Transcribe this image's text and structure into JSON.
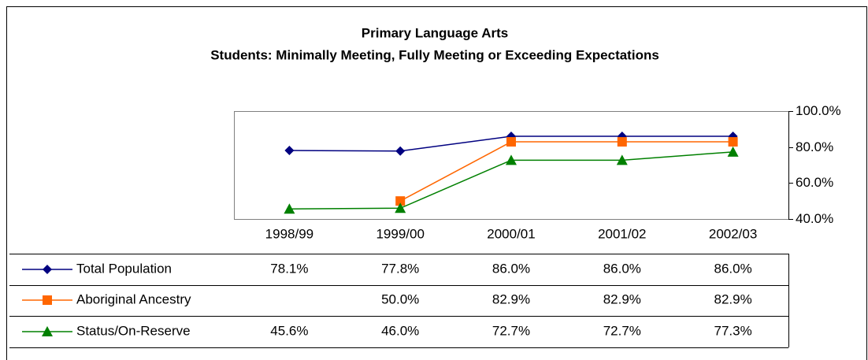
{
  "chart_data": {
    "type": "line",
    "title": "Primary Language Arts",
    "subtitle": "Students: Minimally Meeting, Fully Meeting or Exceeding Expectations",
    "categories": [
      "1998/99",
      "1999/00",
      "2000/01",
      "2001/02",
      "2002/03"
    ],
    "series": [
      {
        "name": "Total Population",
        "color": "#000080",
        "marker": "diamond",
        "values": [
          78.1,
          77.8,
          86.0,
          86.0,
          86.0
        ],
        "value_labels": [
          "78.1%",
          "77.8%",
          "86.0%",
          "86.0%",
          "86.0%"
        ]
      },
      {
        "name": "Aboriginal Ancestry",
        "color": "#ff6600",
        "marker": "square",
        "values": [
          null,
          50.0,
          82.9,
          82.9,
          82.9
        ],
        "value_labels": [
          null,
          "50.0%",
          "82.9%",
          "82.9%",
          "82.9%"
        ]
      },
      {
        "name": "Status/On-Reserve",
        "color": "#008000",
        "marker": "triangle",
        "values": [
          45.6,
          46.0,
          72.7,
          72.7,
          77.3
        ],
        "value_labels": [
          "45.6%",
          "46.0%",
          "72.7%",
          "72.7%",
          "77.3%"
        ]
      }
    ],
    "ylim": [
      40,
      100
    ],
    "yticks": [
      {
        "value": 40,
        "label": "40.0%"
      },
      {
        "value": 60,
        "label": "60.0%"
      },
      {
        "value": 80,
        "label": "80.0%"
      },
      {
        "value": 100,
        "label": "100.0%"
      }
    ],
    "yaxis_side": "right",
    "grid": false
  }
}
